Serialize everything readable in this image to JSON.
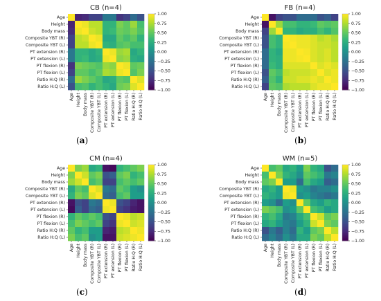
{
  "figure_labels": [
    {
      "open": "(",
      "letter": "a",
      "close": ")"
    },
    {
      "open": "(",
      "letter": "b",
      "close": ")"
    },
    {
      "open": "(",
      "letter": "c",
      "close": ")"
    },
    {
      "open": "(",
      "letter": "d",
      "close": ")"
    }
  ],
  "colorbar_ticks": [
    "1.00",
    "0.75",
    "0.50",
    "0.25",
    "0.00",
    "−0.25",
    "−0.50",
    "−0.75",
    "−1.00"
  ],
  "colormap": "viridis",
  "chart_data": [
    {
      "type": "heatmap",
      "title": "CB (n=4)",
      "variables": [
        "Age",
        "Height",
        "Body mass",
        "Composite YBT (R)",
        "Composite YBT (L)",
        "PT extension (R)",
        "PT extension (L)",
        "PT flexion (R)",
        "PT flexion (L)",
        "Ratio H:Q (R)",
        "Ratio H:Q (L)"
      ],
      "colorbar_range": [
        -1,
        1
      ],
      "matrix": [
        [
          1.0,
          -0.8,
          -0.75,
          -0.6,
          -0.6,
          -0.2,
          -0.2,
          -0.7,
          -0.6,
          -0.3,
          -0.5
        ],
        [
          -0.8,
          1.0,
          0.95,
          0.8,
          0.8,
          0.3,
          0.3,
          0.6,
          0.5,
          0.7,
          0.4
        ],
        [
          -0.75,
          0.95,
          1.0,
          0.85,
          0.8,
          0.3,
          0.35,
          0.55,
          0.5,
          0.6,
          0.45
        ],
        [
          -0.6,
          0.8,
          0.85,
          1.0,
          0.95,
          0.2,
          0.2,
          0.5,
          0.4,
          0.5,
          0.3
        ],
        [
          -0.6,
          0.8,
          0.8,
          0.95,
          1.0,
          0.3,
          0.25,
          0.45,
          0.5,
          0.4,
          0.4
        ],
        [
          -0.2,
          0.3,
          0.3,
          0.2,
          0.3,
          1.0,
          0.95,
          0.7,
          0.75,
          0.2,
          0.3
        ],
        [
          -0.2,
          0.3,
          0.35,
          0.2,
          0.25,
          0.95,
          1.0,
          0.65,
          0.7,
          0.25,
          0.2
        ],
        [
          -0.7,
          0.6,
          0.55,
          0.5,
          0.45,
          0.7,
          0.65,
          1.0,
          0.95,
          0.5,
          0.55
        ],
        [
          -0.6,
          0.5,
          0.5,
          0.4,
          0.5,
          0.75,
          0.7,
          0.95,
          1.0,
          0.45,
          0.6
        ],
        [
          -0.3,
          0.7,
          0.6,
          0.5,
          0.4,
          0.2,
          0.25,
          0.5,
          0.45,
          1.0,
          0.9
        ],
        [
          -0.5,
          0.4,
          0.45,
          0.3,
          0.4,
          0.3,
          0.2,
          0.55,
          0.6,
          0.9,
          1.0
        ]
      ]
    },
    {
      "type": "heatmap",
      "title": "FB (n=4)",
      "variables": [
        "Age",
        "Height",
        "Body mass",
        "Composite YBT (R)",
        "Composite YBT (L)",
        "PT extension (R)",
        "PT extension (L)",
        "PT flexion (R)",
        "PT flexion (L)",
        "Ratio H:Q (R)",
        "Ratio H:Q (L)"
      ],
      "colorbar_range": [
        -1,
        1
      ],
      "matrix": [
        [
          1.0,
          -0.9,
          -0.6,
          -0.5,
          -0.5,
          -0.3,
          -0.3,
          -0.3,
          -0.5,
          -0.4,
          -0.6
        ],
        [
          -0.9,
          1.0,
          0.7,
          0.4,
          0.4,
          0.3,
          0.3,
          0.35,
          0.5,
          0.45,
          0.5
        ],
        [
          -0.6,
          0.7,
          1.0,
          0.3,
          0.3,
          0.2,
          0.25,
          0.25,
          0.4,
          0.3,
          0.45
        ],
        [
          -0.5,
          0.4,
          0.3,
          1.0,
          0.98,
          0.95,
          0.95,
          0.9,
          0.8,
          0.85,
          0.75
        ],
        [
          -0.5,
          0.4,
          0.3,
          0.98,
          1.0,
          0.95,
          0.95,
          0.9,
          0.85,
          0.85,
          0.8
        ],
        [
          -0.3,
          0.3,
          0.2,
          0.95,
          0.95,
          1.0,
          0.98,
          0.9,
          0.85,
          0.9,
          0.8
        ],
        [
          -0.3,
          0.3,
          0.25,
          0.95,
          0.95,
          0.98,
          1.0,
          0.9,
          0.85,
          0.9,
          0.8
        ],
        [
          -0.3,
          0.35,
          0.25,
          0.9,
          0.9,
          0.9,
          0.9,
          1.0,
          0.9,
          0.95,
          0.9
        ],
        [
          -0.5,
          0.5,
          0.4,
          0.8,
          0.85,
          0.85,
          0.85,
          0.9,
          1.0,
          0.9,
          0.95
        ],
        [
          -0.4,
          0.45,
          0.3,
          0.85,
          0.85,
          0.9,
          0.9,
          0.95,
          0.9,
          1.0,
          0.95
        ],
        [
          -0.6,
          0.5,
          0.45,
          0.75,
          0.8,
          0.8,
          0.8,
          0.9,
          0.95,
          0.95,
          1.0
        ]
      ]
    },
    {
      "type": "heatmap",
      "title": "CM (n=4)",
      "variables": [
        "Age",
        "Height",
        "Body mass",
        "Composite YBT (R)",
        "Composite YBT (L)",
        "PT extension (R)",
        "PT extension (L)",
        "PT flexion (R)",
        "PT flexion (L)",
        "Ratio H:Q (R)",
        "Ratio H:Q (L)"
      ],
      "colorbar_range": [
        -1,
        1
      ],
      "matrix": [
        [
          1.0,
          0.6,
          0.7,
          0.2,
          0.3,
          -0.9,
          -0.95,
          0.3,
          0.4,
          0.5,
          0.6
        ],
        [
          0.6,
          1.0,
          0.85,
          0.5,
          0.6,
          -0.5,
          -0.4,
          0.5,
          0.6,
          0.3,
          0.4
        ],
        [
          0.7,
          0.85,
          1.0,
          0.4,
          0.5,
          -0.6,
          -0.6,
          0.4,
          0.5,
          0.4,
          0.5
        ],
        [
          0.2,
          0.5,
          0.4,
          1.0,
          0.9,
          -0.2,
          -0.3,
          0.5,
          0.4,
          0.1,
          0.0
        ],
        [
          0.3,
          0.6,
          0.5,
          0.9,
          1.0,
          -0.3,
          -0.4,
          0.4,
          0.5,
          0.1,
          0.1
        ],
        [
          -0.9,
          -0.5,
          -0.6,
          -0.2,
          -0.3,
          1.0,
          0.95,
          -0.5,
          -0.6,
          -0.8,
          -0.9
        ],
        [
          -0.95,
          -0.4,
          -0.6,
          -0.3,
          -0.4,
          0.95,
          1.0,
          -0.6,
          -0.7,
          -0.85,
          -0.9
        ],
        [
          0.3,
          0.5,
          0.4,
          0.5,
          0.4,
          -0.5,
          -0.6,
          1.0,
          0.95,
          0.8,
          0.85
        ],
        [
          0.4,
          0.6,
          0.5,
          0.4,
          0.5,
          -0.6,
          -0.7,
          0.95,
          1.0,
          0.85,
          0.9
        ],
        [
          0.5,
          0.3,
          0.4,
          0.1,
          0.1,
          -0.8,
          -0.85,
          0.8,
          0.85,
          1.0,
          0.95
        ],
        [
          0.6,
          0.4,
          0.5,
          0.0,
          0.1,
          -0.9,
          -0.9,
          0.85,
          0.9,
          0.95,
          1.0
        ]
      ]
    },
    {
      "type": "heatmap",
      "title": "WM (n=5)",
      "variables": [
        "Age",
        "Height",
        "Body mass",
        "Composite YBT (R)",
        "Composite YBT (L)",
        "PT extension (R)",
        "PT extension (L)",
        "PT flexion (R)",
        "PT flexion (L)",
        "Ratio H:Q (R)",
        "Ratio H:Q (L)"
      ],
      "colorbar_range": [
        -1,
        1
      ],
      "matrix": [
        [
          1.0,
          0.4,
          0.5,
          0.2,
          0.3,
          0.1,
          0.6,
          0.3,
          0.2,
          -0.5,
          -0.3
        ],
        [
          0.4,
          1.0,
          0.6,
          0.3,
          0.2,
          0.0,
          0.5,
          0.4,
          0.3,
          -0.2,
          -0.1
        ],
        [
          0.5,
          0.6,
          1.0,
          0.1,
          0.1,
          -0.3,
          0.4,
          0.2,
          0.1,
          -0.4,
          -0.3
        ],
        [
          0.2,
          0.3,
          0.1,
          1.0,
          0.95,
          0.1,
          0.0,
          -0.2,
          -0.1,
          -0.1,
          0.0
        ],
        [
          0.3,
          0.2,
          0.1,
          0.95,
          1.0,
          0.0,
          0.1,
          -0.1,
          -0.2,
          -0.3,
          -0.2
        ],
        [
          0.1,
          0.0,
          -0.3,
          0.1,
          0.0,
          1.0,
          0.5,
          0.2,
          0.1,
          0.3,
          0.2
        ],
        [
          0.6,
          0.5,
          0.4,
          0.0,
          0.1,
          0.5,
          1.0,
          0.4,
          0.3,
          0.1,
          0.2
        ],
        [
          0.3,
          0.4,
          0.2,
          -0.2,
          -0.1,
          0.2,
          0.4,
          1.0,
          0.85,
          0.5,
          0.6
        ],
        [
          0.2,
          0.3,
          0.1,
          -0.1,
          -0.2,
          0.1,
          0.3,
          0.85,
          1.0,
          0.6,
          0.5
        ],
        [
          -0.5,
          -0.2,
          -0.4,
          -0.1,
          -0.3,
          0.3,
          0.1,
          0.5,
          0.6,
          1.0,
          0.8
        ],
        [
          -0.3,
          -0.1,
          -0.3,
          0.0,
          -0.2,
          0.2,
          0.2,
          0.6,
          0.5,
          0.8,
          1.0
        ]
      ]
    }
  ]
}
